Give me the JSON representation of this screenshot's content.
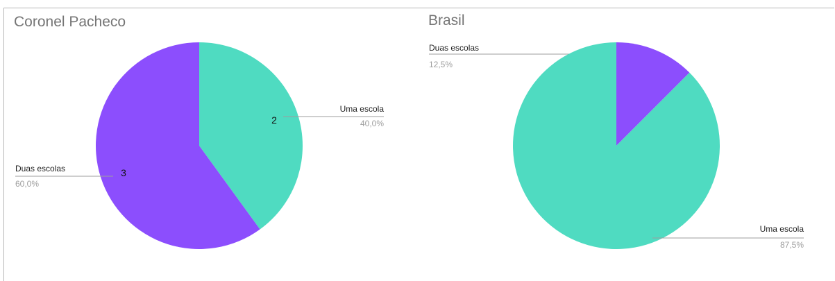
{
  "chart_data": [
    {
      "type": "pie",
      "title": "Coronel Pacheco",
      "slices": [
        {
          "label": "Uma escola",
          "value": 2,
          "percent": "40,0%",
          "value_label": "2",
          "color": "#4fdbc1"
        },
        {
          "label": "Duas escolas",
          "value": 3,
          "percent": "60,0%",
          "value_label": "3",
          "color": "#8c4efd"
        }
      ]
    },
    {
      "type": "pie",
      "title": "Brasil",
      "slices": [
        {
          "label": "Duas escolas",
          "value": 12.5,
          "percent": "12,5%",
          "color": "#8c4efd"
        },
        {
          "label": "Uma escola",
          "value": 87.5,
          "percent": "87,5%",
          "color": "#4fdbc1"
        }
      ]
    }
  ]
}
